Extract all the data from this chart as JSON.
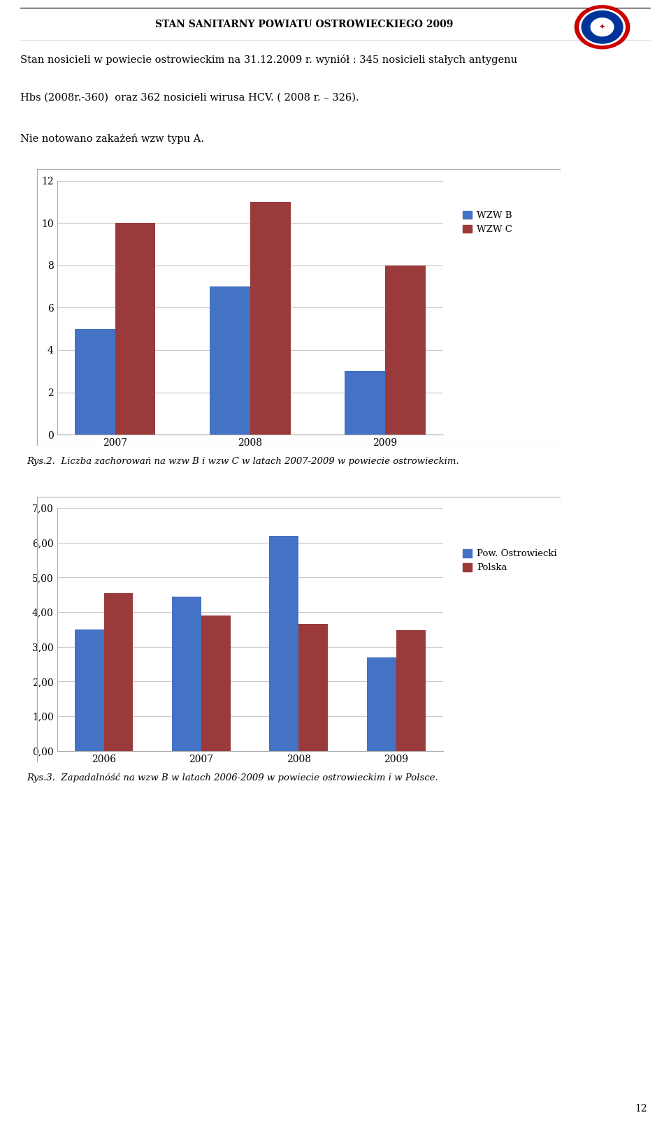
{
  "header_title": "STAN SANITARNY POWIATU OSTROWIECKIEGO 2009",
  "para1": "Stan nosicieli w powiecie ostrowieckim na 31.12.2009 r. wyniół : 345 nosicieli stałych antygenu",
  "para2": "Hbs (2008r.-360)  oraz 362 nosicieli wirusa HCV. ( 2008 r. – 326).",
  "para3": "Nie notowano zakażeń wzw typu A.",
  "chart1_years": [
    "2007",
    "2008",
    "2009"
  ],
  "chart1_wzwB": [
    5,
    7,
    3
  ],
  "chart1_wzwC": [
    10,
    11,
    8
  ],
  "chart1_color_B": "#4472C4",
  "chart1_color_C": "#9B3A3A",
  "chart1_ylim": [
    0,
    12
  ],
  "chart1_yticks": [
    0,
    2,
    4,
    6,
    8,
    10,
    12
  ],
  "chart1_legend_B": "WZW B",
  "chart1_legend_C": "WZW C",
  "chart1_caption": "Rys.2.  Liczba zachorowań na wzw B i wzw C w latach 2007-2009 w powiecie ostrowieckim.",
  "chart2_years": [
    "2006",
    "2007",
    "2008",
    "2009"
  ],
  "chart2_pow": [
    3.5,
    4.45,
    6.2,
    2.7
  ],
  "chart2_polska": [
    4.55,
    3.9,
    3.65,
    3.48
  ],
  "chart2_color_pow": "#4472C4",
  "chart2_color_polska": "#9B3A3A",
  "chart2_ylim": [
    0,
    7
  ],
  "chart2_yticks": [
    0.0,
    1.0,
    2.0,
    3.0,
    4.0,
    5.0,
    6.0,
    7.0
  ],
  "chart2_ytick_labels": [
    "0,00",
    "1,00",
    "2,00",
    "3,00",
    "4,00",
    "5,00",
    "6,00",
    "7,00"
  ],
  "chart2_legend_pow": "Pow. Ostrowiecki",
  "chart2_legend_polska": "Polska",
  "chart2_caption": "Rys.3.  Zapadalnóść na wzw B w latach 2006-2009 w powiecie ostrowieckim i w Polsce.",
  "page_number": "12",
  "bg_color": "#FFFFFF",
  "chart_bg": "#FFFFFF",
  "grid_color": "#C8C8C8"
}
